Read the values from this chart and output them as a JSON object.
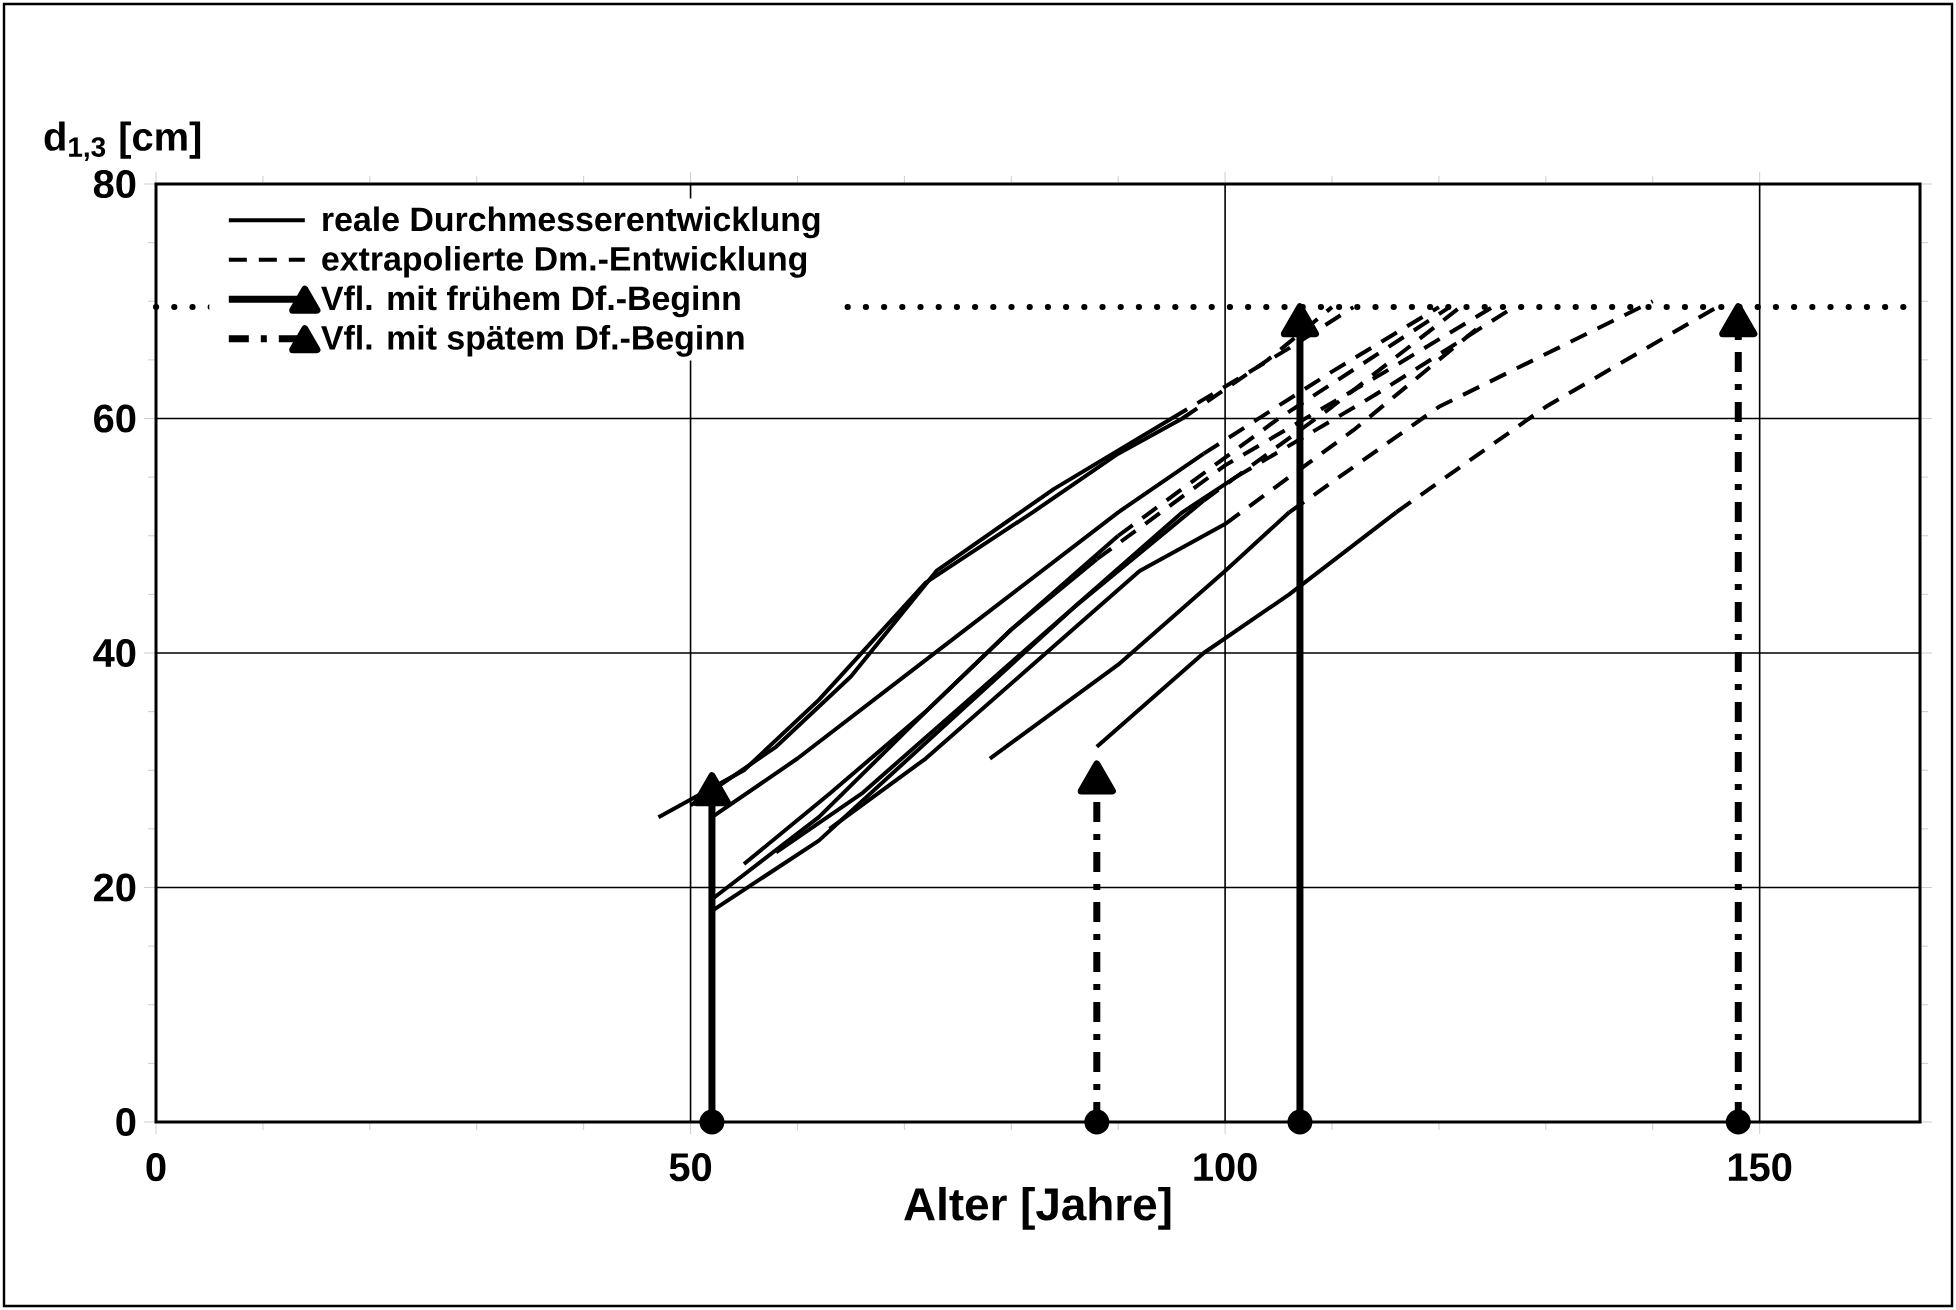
{
  "chart_data": {
    "type": "line",
    "xlabel": "Alter [Jahre]",
    "ylabel": "d$_{1,3}$ [cm]",
    "xlim": [
      0,
      165
    ],
    "ylim": [
      0,
      80
    ],
    "xticks": [
      0,
      50,
      100,
      150
    ],
    "yticks": [
      0,
      20,
      40,
      60,
      80
    ],
    "grid": true,
    "legend": "top left",
    "ref_lines": [
      {
        "axis": "y",
        "value": 69.5,
        "line_style": "dotted",
        "color": "#000000"
      }
    ],
    "series": [
      {
        "name": "reale Durchmesserentwicklung",
        "line_style": "solid",
        "color": "#000000",
        "x": [
          47,
          55,
          62,
          72,
          82,
          90,
          96
        ],
        "values": [
          26,
          30,
          36,
          46,
          52,
          57,
          60
        ]
      },
      {
        "name": "extrapolierte Dm.-Entwicklung",
        "line_style": "dashed",
        "color": "#000000",
        "x": [
          96,
          104,
          110
        ],
        "values": [
          60,
          65,
          69.5
        ]
      },
      {
        "name": "Vfl. mit frühem Df.-Beginn",
        "line_style": "solid",
        "marker": "triangle",
        "color": "#000000",
        "x": [
          52,
          52
        ],
        "values": [
          0,
          28
        ]
      },
      {
        "name": "Vfl. mit spätem Df.-Beginn",
        "line_style": "dashdot",
        "marker": "triangle",
        "color": "#000000",
        "x": [
          88,
          88
        ],
        "values": [
          0,
          29
        ]
      },
      {
        "line_style": "solid",
        "marker": "triangle",
        "color": "#000000",
        "x": [
          107,
          107
        ],
        "values": [
          0,
          68
        ]
      },
      {
        "line_style": "dashdot",
        "marker": "triangle",
        "color": "#000000",
        "x": [
          148,
          148
        ],
        "values": [
          0,
          68
        ]
      },
      {
        "type": "scatter",
        "marker": "circle",
        "color": "#000000",
        "x": [
          52,
          88,
          107,
          148
        ],
        "values": [
          0,
          0,
          0,
          0
        ]
      },
      {
        "line_style": "solid",
        "color": "#000000",
        "x": [
          50,
          58,
          65,
          73,
          84,
          95
        ],
        "values": [
          27,
          32,
          38,
          47,
          54,
          60
        ]
      },
      {
        "line_style": "dashed",
        "color": "#000000",
        "x": [
          95,
          106,
          112
        ],
        "values": [
          60,
          66,
          69.5
        ]
      },
      {
        "line_style": "solid",
        "color": "#000000",
        "x": [
          52,
          60,
          70,
          80,
          90,
          98
        ],
        "values": [
          26,
          31,
          38,
          45,
          52,
          57
        ]
      },
      {
        "line_style": "dashed",
        "color": "#000000",
        "x": [
          98,
          110,
          120
        ],
        "values": [
          57,
          64,
          69.5
        ]
      },
      {
        "line_style": "solid",
        "color": "#000000",
        "x": [
          52,
          62,
          72,
          80,
          88
        ],
        "values": [
          19,
          26,
          35,
          42,
          48
        ]
      },
      {
        "line_style": "dashed",
        "color": "#000000",
        "x": [
          88,
          100,
          115,
          125
        ],
        "values": [
          48,
          56,
          64,
          69.5
        ]
      },
      {
        "line_style": "solid",
        "color": "#000000",
        "x": [
          52,
          62,
          74,
          86,
          98
        ],
        "values": [
          18,
          24,
          34,
          44,
          53
        ]
      },
      {
        "line_style": "dashed",
        "color": "#000000",
        "x": [
          98,
          110,
          122
        ],
        "values": [
          53,
          61,
          69.5
        ]
      },
      {
        "line_style": "solid",
        "color": "#000000",
        "x": [
          55,
          63,
          72,
          80,
          90
        ],
        "values": [
          22,
          28,
          35,
          42,
          50
        ]
      },
      {
        "line_style": "dashed",
        "color": "#000000",
        "x": [
          90,
          105,
          121
        ],
        "values": [
          50,
          60,
          69.5
        ]
      },
      {
        "line_style": "solid",
        "color": "#000000",
        "x": [
          58,
          66,
          76,
          86,
          96,
          101
        ],
        "values": [
          23,
          28,
          36,
          44,
          52,
          55
        ]
      },
      {
        "line_style": "dashed",
        "color": "#000000",
        "x": [
          101,
          114,
          127
        ],
        "values": [
          55,
          62,
          69.5
        ]
      },
      {
        "line_style": "solid",
        "color": "#000000",
        "x": [
          63,
          72,
          82,
          92,
          100
        ],
        "values": [
          25,
          31,
          39,
          47,
          51
        ]
      },
      {
        "line_style": "dashed",
        "color": "#000000",
        "x": [
          100,
          112,
          124
        ],
        "values": [
          51,
          59,
          68
        ]
      },
      {
        "line_style": "solid",
        "color": "#000000",
        "x": [
          78,
          90,
          100,
          106
        ],
        "values": [
          31,
          39,
          47,
          52
        ]
      },
      {
        "line_style": "dashed",
        "color": "#000000",
        "x": [
          106,
          120,
          140
        ],
        "values": [
          52,
          61,
          70
        ]
      },
      {
        "line_style": "solid",
        "color": "#000000",
        "x": [
          88,
          98,
          106,
          116
        ],
        "values": [
          32,
          40,
          45,
          52
        ]
      },
      {
        "line_style": "dashed",
        "color": "#000000",
        "x": [
          116,
          130,
          146
        ],
        "values": [
          52,
          61,
          69.5
        ]
      }
    ]
  }
}
